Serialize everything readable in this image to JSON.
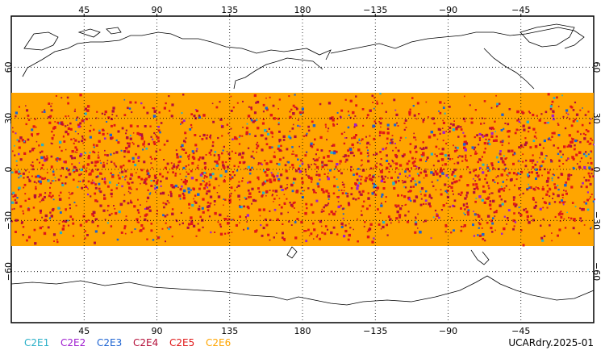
{
  "map": {
    "projection": "cylindrical",
    "lon_center": 180,
    "lat_range": [
      -90,
      90
    ],
    "grid": true,
    "lon_ticks": [
      "45",
      "90",
      "135",
      "180",
      "−135",
      "−90",
      "−45"
    ],
    "lat_ticks": [
      "60",
      "30",
      "0",
      "−30",
      "−60"
    ],
    "lat_values": [
      60,
      30,
      0,
      -30,
      -60
    ],
    "lon_values": [
      45,
      90,
      135,
      180,
      225,
      270,
      315
    ],
    "coverage_lat": [
      -45,
      45
    ],
    "dominant_color": "#ffa500"
  },
  "legend": [
    {
      "name": "C2E1",
      "color": "#2ab0c8"
    },
    {
      "name": "C2E2",
      "color": "#a020d0"
    },
    {
      "name": "C2E3",
      "color": "#1e64d2"
    },
    {
      "name": "C2E4",
      "color": "#b4103a"
    },
    {
      "name": "C2E5",
      "color": "#e01818"
    },
    {
      "name": "C2E6",
      "color": "#ffa500"
    }
  ],
  "product_label": "UCARdry.2025-01"
}
